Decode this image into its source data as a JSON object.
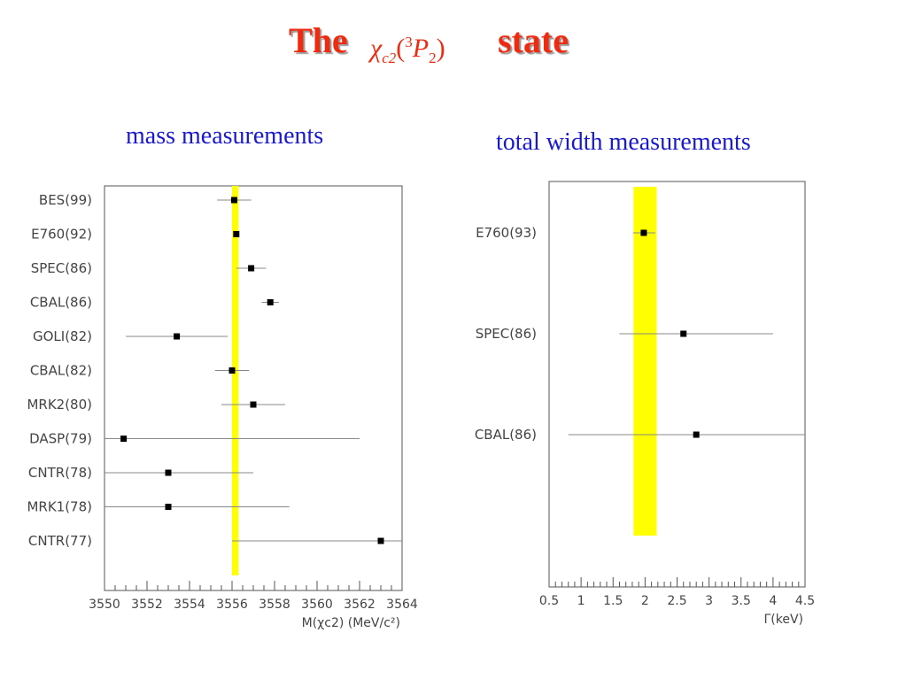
{
  "slide": {
    "title_prefix": "The",
    "title_suffix": "state",
    "title_formula": {
      "chi": "χ",
      "chi_sub": "c2",
      "open": "(",
      "sup": "3",
      "P": "P",
      "P_sub": "2",
      "close": ")"
    },
    "title_color": "#ee2b10",
    "subtitle_color": "#1a1acc",
    "band_color": "#ffff00"
  },
  "chart_data": [
    {
      "type": "scatter",
      "subtitle": "mass measurements",
      "xlabel": "M(χc2)  (MeV/c²)",
      "xlim": [
        3550,
        3564
      ],
      "xticks": [
        3550,
        3552,
        3554,
        3556,
        3558,
        3560,
        3562,
        3564
      ],
      "band": [
        3556.0,
        3556.3
      ],
      "error_bars": "horizontal",
      "points": [
        {
          "label": "BES(99)",
          "value": 3556.1,
          "low": 3555.3,
          "high": 3556.9
        },
        {
          "label": "E760(92)",
          "value": 3556.2,
          "low": 3556.1,
          "high": 3556.3
        },
        {
          "label": "SPEC(86)",
          "value": 3556.9,
          "low": 3556.2,
          "high": 3557.6
        },
        {
          "label": "CBAL(86)",
          "value": 3557.8,
          "low": 3557.4,
          "high": 3558.2
        },
        {
          "label": "GOLI(82)",
          "value": 3553.4,
          "low": 3551.0,
          "high": 3555.8
        },
        {
          "label": "CBAL(82)",
          "value": 3556.0,
          "low": 3555.2,
          "high": 3556.8
        },
        {
          "label": "MRK2(80)",
          "value": 3557.0,
          "low": 3555.5,
          "high": 3558.5
        },
        {
          "label": "DASP(79)",
          "value": 3550.9,
          "low": 3550.0,
          "high": 3562.0
        },
        {
          "label": "CNTR(78)",
          "value": 3553.0,
          "low": 3550.0,
          "high": 3557.0
        },
        {
          "label": "MRK1(78)",
          "value": 3553.0,
          "low": 3550.0,
          "high": 3558.7
        },
        {
          "label": "CNTR(77)",
          "value": 3563.0,
          "low": 3556.0,
          "high": 3564.0
        }
      ]
    },
    {
      "type": "scatter",
      "subtitle": "total width measurements",
      "xlabel": "Γ(keV)",
      "xlim": [
        0.5,
        4.5
      ],
      "xticks": [
        "0.5",
        "1",
        "1.5",
        "2",
        "2.5",
        "3",
        "3.5",
        "4",
        "4.5"
      ],
      "band": [
        1.82,
        2.18
      ],
      "error_bars": "horizontal",
      "points": [
        {
          "label": "E760(93)",
          "value": 1.98,
          "low": 1.81,
          "high": 2.16
        },
        {
          "label": "SPEC(86)",
          "value": 2.6,
          "low": 1.6,
          "high": 4.0
        },
        {
          "label": "CBAL(86)",
          "value": 2.8,
          "low": 0.8,
          "high": 4.5
        }
      ]
    }
  ]
}
